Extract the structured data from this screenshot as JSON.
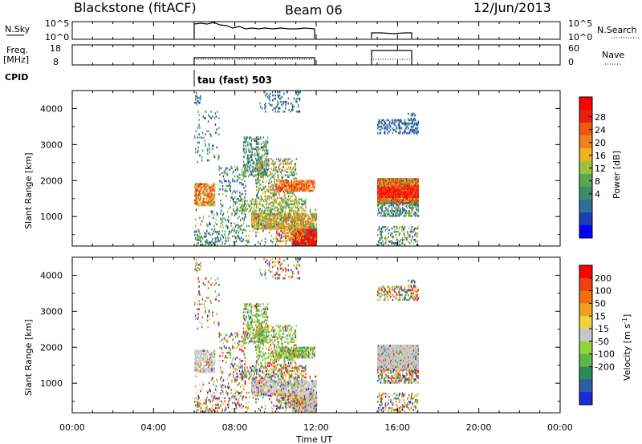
{
  "header": {
    "station": "Blackstone (fitACF)",
    "beam": "Beam 06",
    "date": "12/Jun/2013"
  },
  "summary_panels": {
    "nsky": {
      "label": "N.Sky",
      "scale_top": "10^5",
      "scale_bottom": "10^0"
    },
    "nsearch": {
      "label": "N.Search",
      "scale_top": "10^5",
      "scale_bottom": "10^0"
    },
    "freq": {
      "label_line1": "Freq.",
      "label_line2": "[MHz]",
      "ticks": [
        "18",
        "8"
      ]
    },
    "nave": {
      "label": "Nave",
      "ticks": [
        "60",
        "0"
      ]
    },
    "cpid": {
      "label": "CPID",
      "value": "tau (fast) 503"
    }
  },
  "time_axis": {
    "label": "Time UT",
    "ticks": [
      "00:00",
      "04:00",
      "08:00",
      "12:00",
      "16:00",
      "20:00",
      "00:00"
    ]
  },
  "power_panel": {
    "ylabel": "Slant Range [km]",
    "yticks": [
      "4000",
      "3000",
      "2000",
      "1000"
    ],
    "colorbar_label": "Power [dB]",
    "colorbar_ticks": [
      "28",
      "24",
      "20",
      "16",
      "12",
      "8",
      "4"
    ],
    "colors": [
      "#0000ff",
      "#1f3fb0",
      "#2f6d9a",
      "#3d8f6a",
      "#5aa84e",
      "#9ac23c",
      "#f0b020",
      "#f08020",
      "#f05a10",
      "#e82010",
      "#ff0000"
    ]
  },
  "velocity_panel": {
    "ylabel": "Slant Range [km]",
    "yticks": [
      "4000",
      "3000",
      "2000",
      "1000"
    ],
    "colorbar_label": "Velocity [m s",
    "colorbar_label_sup": "-1",
    "colorbar_label_end": "]",
    "colorbar_ticks": [
      "200",
      "100",
      "50",
      "15",
      "-15",
      "-50",
      "-100",
      "-200"
    ],
    "colors": [
      "#1d2bd6",
      "#2a5fa6",
      "#2e8a5a",
      "#5cb84a",
      "#8fd63c",
      "#c8c8c8",
      "#f0d040",
      "#f0a020",
      "#f07010",
      "#f04010",
      "#ff0000"
    ]
  },
  "chart_data": {
    "type": "heatmap",
    "x_range_hours": [
      0,
      24
    ],
    "y_range_km": [
      180,
      4500
    ],
    "operating_intervals_hours": [
      [
        6,
        12
      ],
      [
        15,
        17
      ]
    ],
    "cpid": "tau (fast) 503"
  }
}
